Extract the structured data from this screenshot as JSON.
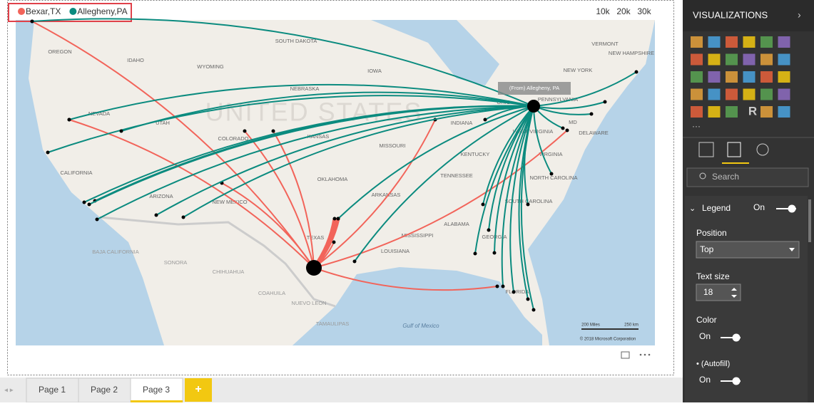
{
  "legend": {
    "items": [
      {
        "label": "Bexar,TX",
        "color": "#f2645a"
      },
      {
        "label": "Allegheny,PA",
        "color": "#0b8b7f"
      }
    ]
  },
  "scale_buttons": [
    "10k",
    "20k",
    "30k"
  ],
  "map": {
    "country_label": "UNITED STATES",
    "water_label": "Gulf of Mexico",
    "region_labels": [
      "OREGON",
      "IDAHO",
      "WYOMING",
      "SOUTH DAKOTA",
      "IOWA",
      "NEBRASKA",
      "NEVADA",
      "UTAH",
      "COLORADO",
      "KANSAS",
      "MISSOURI",
      "INDIANA",
      "OHIO",
      "PENNSYLVANIA",
      "NEW YORK",
      "VERMONT",
      "NEW HAMPSHIRE",
      "MD",
      "DELAWARE",
      "WEST VIRGINIA",
      "KENTUCKY",
      "VIRGINIA",
      "TENNESSEE",
      "NORTH CAROLINA",
      "OKLAHOMA",
      "ARKANSAS",
      "CALIFORNIA",
      "ARIZONA",
      "NEW MEXICO",
      "SOUTH CAROLINA",
      "ALABAMA",
      "MISSISSIPPI",
      "GEORGIA",
      "TEXAS",
      "LOUISIANA",
      "FLORIDA",
      "BAJA CALIFORNIA",
      "SONORA",
      "CHIHUAHUA",
      "COAHUILA",
      "NUEVO LEON",
      "TAMAULIPAS"
    ],
    "tooltip": "(From) Allegheny, PA",
    "scale_miles": "200 Miles",
    "scale_km": "250 km",
    "copyright": "© 2018 Microsoft Corporation"
  },
  "tabs": [
    "Page 1",
    "Page 2",
    "Page 3"
  ],
  "add_tab": "+",
  "panel": {
    "title": "VISUALIZATIONS",
    "r_icon": "R",
    "search": "Search",
    "legend": {
      "label": "Legend",
      "state": "On"
    },
    "position": {
      "label": "Position",
      "value": "Top"
    },
    "text_size": {
      "label": "Text size",
      "value": "18"
    },
    "color": {
      "label": "Color",
      "state": "On"
    },
    "autofill": {
      "label": "• (Autofill)",
      "state": "On"
    }
  }
}
